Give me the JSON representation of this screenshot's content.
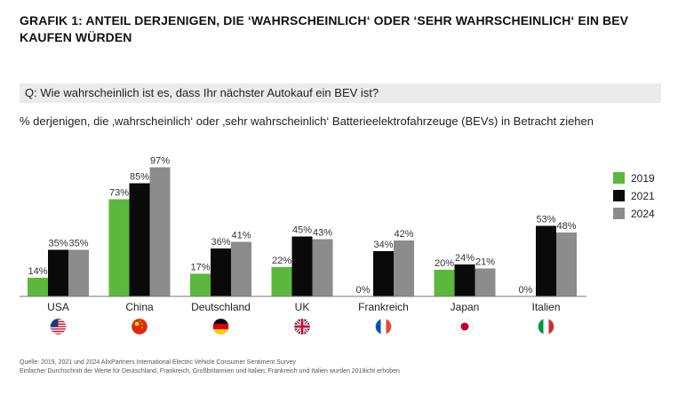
{
  "title": "GRAFIK 1: ANTEIL DERJENIGEN, DIE ‘WAHRSCHEINLICH‘ ODER ‘SEHR WAHRSCHEINLICH‘ EIN BEV KAUFEN WÜRDEN",
  "question": "Q: Wie wahrscheinlich ist es, dass Ihr nächster Autokauf ein BEV ist?",
  "subtitle": "% derjenigen, die ‚wahrscheinlich‘ oder ‚sehr wahrscheinlich‘ Batterieelektrofahrzeuge (BEVs) in Betracht ziehen",
  "source_line1": "Quelle: 2019, 2021 und 2024 AlixPartners International Electric Vehicle Consumer Sentiment Survey",
  "source_line2": "Einfacher Durchschnitt der Werte für Deutschland, Frankreich, Großbritannien und Italien; Frankreich und Italien wurden 2018icht erhoben",
  "chart_data": {
    "type": "bar",
    "title": "GRAFIK 1: ANTEIL DERJENIGEN, DIE ‘WAHRSCHEINLICH‘ ODER ‘SEHR WAHRSCHEINLICH‘ EIN BEV KAUFEN WÜRDEN",
    "xlabel": "",
    "ylabel": "%",
    "ylim": [
      0,
      100
    ],
    "grid": false,
    "legend_position": "right",
    "categories": [
      "USA",
      "China",
      "Deutschland",
      "UK",
      "Frankreich",
      "Japan",
      "Italien"
    ],
    "series": [
      {
        "name": "2019",
        "color": "#5cb83c",
        "values": [
          14,
          73,
          17,
          22,
          0,
          20,
          0
        ]
      },
      {
        "name": "2021",
        "color": "#0a0a0a",
        "values": [
          35,
          85,
          36,
          45,
          34,
          24,
          53
        ]
      },
      {
        "name": "2024",
        "color": "#8c8c8c",
        "values": [
          35,
          97,
          41,
          43,
          42,
          21,
          48
        ]
      }
    ]
  },
  "flags": {
    "USA": "us-flag-icon",
    "China": "china-flag-icon",
    "Deutschland": "germany-flag-icon",
    "UK": "uk-flag-icon",
    "Frankreich": "france-flag-icon",
    "Japan": "japan-flag-icon",
    "Italien": "italy-flag-icon"
  }
}
